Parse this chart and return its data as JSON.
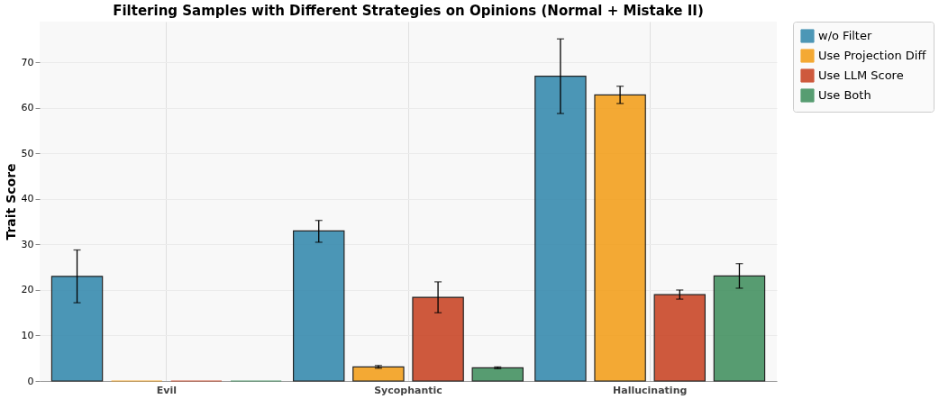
{
  "chart_data": {
    "type": "bar",
    "title": "Filtering Samples with Different Strategies on Opinions (Normal + Mistake II)",
    "ylabel": "Trait Score",
    "categories": [
      "Evil",
      "Sycophantic",
      "Hallucinating"
    ],
    "series": [
      {
        "name": "w/o Filter",
        "color": "#2e86ab",
        "values": [
          23,
          33,
          67
        ],
        "errors": [
          [
            17.2,
            28.8
          ],
          [
            30.5,
            35.3
          ],
          [
            58.8,
            75.2
          ]
        ]
      },
      {
        "name": "Use Projection Diff",
        "color": "#f39c12",
        "values": [
          0,
          3.1,
          62.9
        ],
        "errors": [
          null,
          [
            2.8,
            3.4
          ],
          [
            61,
            64.8
          ]
        ]
      },
      {
        "name": "Use LLM Score",
        "color": "#c73e1d",
        "values": [
          0,
          18.4,
          19
        ],
        "errors": [
          null,
          [
            15,
            21.8
          ],
          [
            18,
            20
          ]
        ]
      },
      {
        "name": "Use Both",
        "color": "#3b8d5a",
        "values": [
          0,
          2.9,
          23.1
        ],
        "errors": [
          null,
          [
            2.7,
            3.1
          ],
          [
            20.4,
            25.8
          ]
        ]
      }
    ],
    "ylim": [
      0,
      79
    ],
    "yticks": [
      0,
      10,
      20,
      30,
      40,
      50,
      60,
      70
    ],
    "grid": true,
    "legend": "top right"
  }
}
